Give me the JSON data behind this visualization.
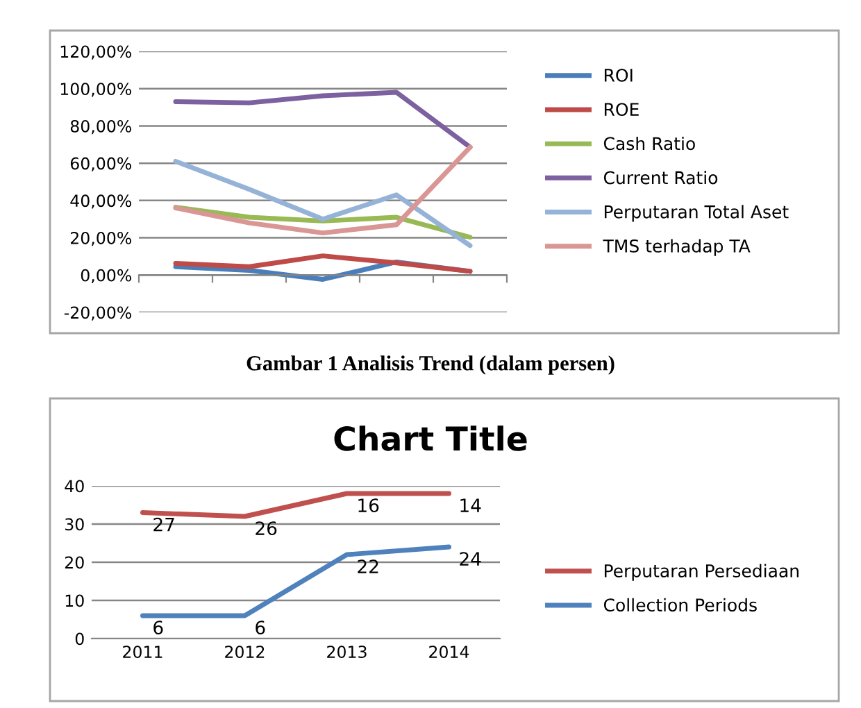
{
  "chart_data": [
    {
      "type": "line",
      "categories": [
        null,
        null,
        null,
        null,
        null
      ],
      "series": [
        {
          "name": "ROI",
          "color": "#4a7ebb",
          "values": [
            4.5,
            2.5,
            -2.3,
            7,
            2
          ]
        },
        {
          "name": "ROE",
          "color": "#be4b48",
          "values": [
            6.3,
            4.5,
            10.3,
            6.5,
            2
          ]
        },
        {
          "name": "Cash Ratio",
          "color": "#98b954",
          "values": [
            36.4,
            31,
            29,
            31,
            20.3
          ]
        },
        {
          "name": "Current Ratio",
          "color": "#7d60a0",
          "values": [
            93,
            92.4,
            96.2,
            98,
            68.6
          ]
        },
        {
          "name": "Perputaran Total Aset",
          "color": "#95b3d7",
          "values": [
            61,
            46,
            30,
            43,
            15.8
          ]
        },
        {
          "name": "TMS terhadap TA",
          "color": "#d99694",
          "values": [
            36,
            28,
            22.6,
            27,
            68.6
          ]
        }
      ],
      "ylim": [
        -20,
        120
      ],
      "yticks": [
        {
          "value": -20,
          "label": "-20,00%"
        },
        {
          "value": 0,
          "label": "0,00%"
        },
        {
          "value": 20,
          "label": "20,00%"
        },
        {
          "value": 40,
          "label": "40,00%"
        },
        {
          "value": 60,
          "label": "60,00%"
        },
        {
          "value": 80,
          "label": "80,00%"
        },
        {
          "value": 100,
          "label": "100,00%"
        },
        {
          "value": 120,
          "label": "120,00%"
        }
      ],
      "grid": "y",
      "legend": "right",
      "marker": "none",
      "line_style": "solid",
      "annotations": [
        "Gambar 1 Analisis Trend (dalam persen)"
      ]
    },
    {
      "type": "line",
      "title": "Chart Title",
      "categories": [
        "2011",
        "2012",
        "2013",
        "2014"
      ],
      "series": [
        {
          "name": "Perputaran Persediaan",
          "color": "#c0504d",
          "values": [
            33,
            32,
            38,
            38
          ]
        },
        {
          "name": "Collection Periods",
          "color": "#4f81bd",
          "values": [
            6,
            6,
            22,
            24
          ],
          "value_labels": [
            "6",
            "6",
            "22",
            "24"
          ]
        }
      ],
      "ylim": [
        0,
        40
      ],
      "yticks": [
        0,
        10,
        20,
        30,
        40
      ],
      "grid": "y",
      "legend": "right",
      "marker": "none",
      "line_style": "solid",
      "annotations": [
        {
          "text": "27",
          "x": "2011",
          "y": 33
        },
        {
          "text": "26",
          "x": "2012",
          "y": 32
        },
        {
          "text": "16",
          "x": "2013",
          "y": 38
        },
        {
          "text": "14",
          "x": "2014",
          "y": 38
        }
      ]
    }
  ]
}
